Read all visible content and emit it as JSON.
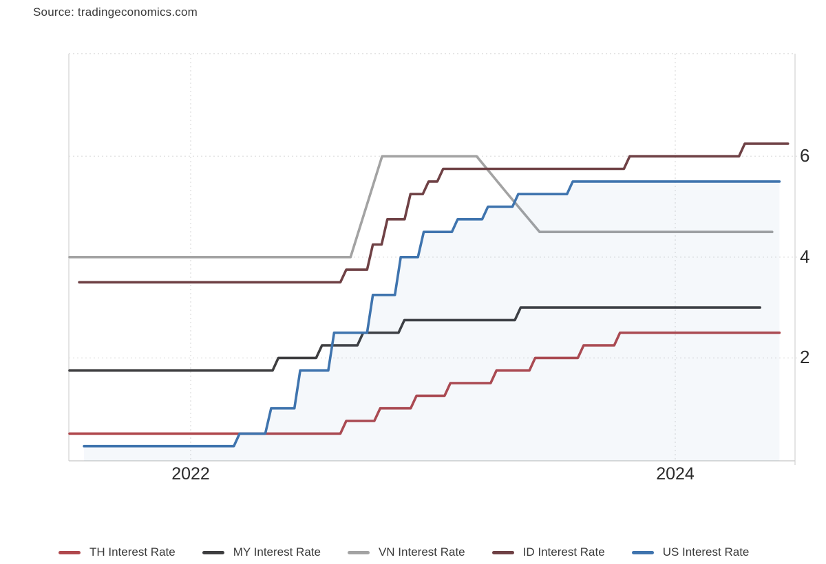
{
  "source_label": "Source: tradingeconomics.com",
  "chart_data": {
    "type": "line",
    "subtype": "step-lines-interest-rates",
    "title": "",
    "xlabel": "",
    "ylabel": "",
    "grid": "dotted",
    "legend_position": "bottom",
    "x_axis": {
      "range_decimal_years": [
        2021.497,
        2024.497
      ],
      "ticks": [
        {
          "label": "2022",
          "year": 2022
        },
        {
          "label": "2024",
          "year": 2024
        }
      ]
    },
    "y_axis": {
      "range": [
        -0.05,
        8.03
      ],
      "ticks": [
        {
          "label": "6",
          "value": 6
        },
        {
          "label": "4",
          "value": 4
        },
        {
          "label": "2",
          "value": 2
        }
      ]
    },
    "series": [
      {
        "id": "th",
        "label": "TH Interest Rate",
        "color": "#b0484d",
        "step": true,
        "area": false,
        "start": [
          2021.5,
          0.5
        ],
        "changes": [
          [
            2022.63,
            0.75
          ],
          [
            2022.77,
            1.0
          ],
          [
            2022.92,
            1.25
          ],
          [
            2023.06,
            1.5
          ],
          [
            2023.25,
            1.75
          ],
          [
            2023.41,
            2.0
          ],
          [
            2023.61,
            2.25
          ],
          [
            2023.76,
            2.5
          ]
        ],
        "end": 2024.43,
        "end_value": 2.5
      },
      {
        "id": "my",
        "label": "MY Interest Rate",
        "color": "#3e3e40",
        "step": true,
        "area": false,
        "start": [
          2021.5,
          1.75
        ],
        "changes": [
          [
            2022.35,
            2.0
          ],
          [
            2022.53,
            2.25
          ],
          [
            2022.7,
            2.5
          ],
          [
            2022.87,
            2.75
          ],
          [
            2023.35,
            3.0
          ]
        ],
        "end": 2024.35,
        "end_value": 3.0
      },
      {
        "id": "vn",
        "label": "VN Interest Rate",
        "color": "#a3a3a3",
        "step": false,
        "area": false,
        "start": [
          2021.5,
          4.0
        ],
        "changes": [
          [
            2022.66,
            4.0
          ],
          [
            2022.79,
            6.0
          ],
          [
            2023.18,
            6.0
          ],
          [
            2023.3,
            5.3
          ],
          [
            2023.44,
            4.5
          ]
        ],
        "end": 2024.4,
        "end_value": 4.5
      },
      {
        "id": "id",
        "label": "ID Interest Rate",
        "color": "#6f4145",
        "step": true,
        "area": false,
        "start": [
          2021.54,
          3.5
        ],
        "changes": [
          [
            2022.63,
            3.75
          ],
          [
            2022.74,
            4.25
          ],
          [
            2022.8,
            4.75
          ],
          [
            2022.895,
            5.25
          ],
          [
            2022.97,
            5.5
          ],
          [
            2023.03,
            5.75
          ],
          [
            2023.8,
            6.0
          ],
          [
            2024.275,
            6.25
          ]
        ],
        "end": 2024.465,
        "end_value": 6.25
      },
      {
        "id": "us",
        "label": "US Interest Rate",
        "color": "#3f74ae",
        "step": true,
        "area": true,
        "area_opacity": 0.05,
        "start": [
          2021.56,
          0.25
        ],
        "changes": [
          [
            2022.19,
            0.5
          ],
          [
            2022.32,
            1.0
          ],
          [
            2022.44,
            1.75
          ],
          [
            2022.58,
            2.5
          ],
          [
            2022.74,
            3.25
          ],
          [
            2022.855,
            4.0
          ],
          [
            2022.95,
            4.5
          ],
          [
            2023.09,
            4.75
          ],
          [
            2023.215,
            5.0
          ],
          [
            2023.34,
            5.25
          ],
          [
            2023.565,
            5.5
          ]
        ],
        "end": 2024.43,
        "end_value": 5.5
      }
    ]
  },
  "colors": {
    "grid": "#e2e2e2",
    "axis_line": "#cfcfcf",
    "border": "#dedede",
    "tick_text": "#2b2b2b",
    "source_text": "#3a3a3a"
  }
}
